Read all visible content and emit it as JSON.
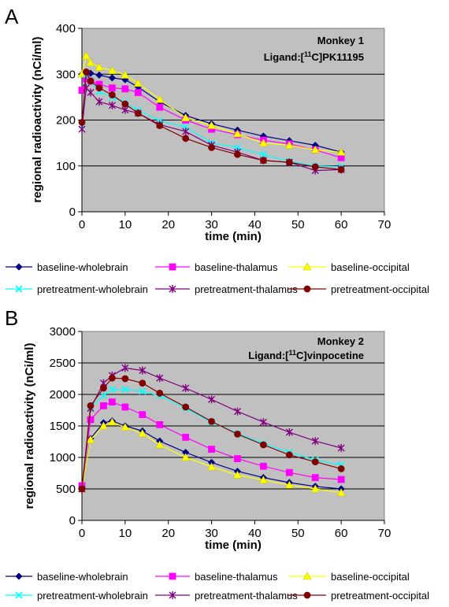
{
  "chart_data": [
    {
      "type": "line",
      "panel": "A",
      "annotation": {
        "line1": "Monkey 1",
        "line2_prefix": "Ligand:[",
        "line2_sup": "11",
        "line2_suffix": "C]PK11195"
      },
      "xlabel": "time (min)",
      "ylabel": "regional radioactivity (nCi/ml)",
      "xlim": [
        0,
        70
      ],
      "ylim": [
        0,
        400
      ],
      "xticks": [
        0,
        10,
        20,
        30,
        40,
        50,
        60,
        70
      ],
      "yticks": [
        0,
        100,
        200,
        300,
        400
      ],
      "grid": true,
      "legend_position": "bottom",
      "x": [
        0,
        1,
        2,
        4,
        7,
        10,
        13,
        18,
        24,
        30,
        36,
        42,
        48,
        54,
        60
      ],
      "series": [
        {
          "name": "baseline-wholebrain",
          "color": "#000080",
          "marker": "diamond",
          "values": [
            300,
            305,
            302,
            298,
            292,
            288,
            272,
            240,
            210,
            192,
            178,
            165,
            155,
            145,
            130
          ]
        },
        {
          "name": "baseline-thalamus",
          "color": "#FF00FF",
          "marker": "square",
          "values": [
            265,
            290,
            285,
            278,
            270,
            268,
            260,
            228,
            200,
            180,
            168,
            156,
            148,
            135,
            118
          ]
        },
        {
          "name": "baseline-occipital",
          "color": "#FFFF00",
          "marker": "triangle",
          "values": [
            300,
            340,
            325,
            315,
            308,
            298,
            280,
            245,
            205,
            188,
            170,
            150,
            145,
            135,
            130
          ]
        },
        {
          "name": "pretreatment-wholebrain",
          "color": "#00FFFF",
          "marker": "x",
          "values": [
            190,
            300,
            285,
            262,
            250,
            238,
            222,
            198,
            185,
            150,
            140,
            125,
            110,
            100,
            98
          ]
        },
        {
          "name": "pretreatment-thalamus",
          "color": "#800080",
          "marker": "star",
          "values": [
            180,
            270,
            260,
            240,
            232,
            222,
            215,
            190,
            175,
            145,
            130,
            112,
            108,
            90,
            92
          ]
        },
        {
          "name": "pretreatment-occipital",
          "color": "#800000",
          "marker": "circle",
          "values": [
            195,
            305,
            285,
            270,
            255,
            235,
            215,
            188,
            160,
            140,
            125,
            112,
            108,
            98,
            92
          ]
        }
      ]
    },
    {
      "type": "line",
      "panel": "B",
      "annotation": {
        "line1": "Monkey 2",
        "line2_prefix": "Ligand:[",
        "line2_sup": "11",
        "line2_suffix": "C]vinpocetine"
      },
      "xlabel": "time (min)",
      "ylabel": "regional radioactivity (nCi/ml)",
      "xlim": [
        0,
        70
      ],
      "ylim": [
        0,
        3000
      ],
      "xticks": [
        0,
        10,
        20,
        30,
        40,
        50,
        60,
        70
      ],
      "yticks": [
        0,
        500,
        1000,
        1500,
        2000,
        2500,
        3000
      ],
      "grid": true,
      "legend_position": "bottom",
      "x": [
        0,
        2,
        5,
        7,
        10,
        14,
        18,
        24,
        30,
        36,
        42,
        48,
        54,
        60
      ],
      "series": [
        {
          "name": "baseline-wholebrain",
          "color": "#000080",
          "marker": "diamond",
          "values": [
            500,
            1300,
            1550,
            1580,
            1500,
            1420,
            1260,
            1080,
            920,
            780,
            680,
            600,
            540,
            500
          ]
        },
        {
          "name": "baseline-thalamus",
          "color": "#FF00FF",
          "marker": "square",
          "values": [
            550,
            1600,
            1820,
            1880,
            1800,
            1680,
            1520,
            1320,
            1130,
            980,
            860,
            760,
            680,
            650
          ]
        },
        {
          "name": "baseline-occipital",
          "color": "#FFFF00",
          "marker": "triangle",
          "values": [
            500,
            1280,
            1500,
            1560,
            1480,
            1380,
            1200,
            1000,
            850,
            720,
            640,
            560,
            500,
            440
          ]
        },
        {
          "name": "pretreatment-wholebrain",
          "color": "#00FFFF",
          "marker": "x",
          "values": [
            500,
            1800,
            1980,
            2080,
            2080,
            2050,
            1980,
            1780,
            1560,
            1380,
            1220,
            1080,
            960,
            880
          ]
        },
        {
          "name": "pretreatment-thalamus",
          "color": "#800080",
          "marker": "star",
          "values": [
            500,
            1780,
            2180,
            2300,
            2420,
            2380,
            2260,
            2100,
            1920,
            1730,
            1560,
            1400,
            1260,
            1150
          ]
        },
        {
          "name": "pretreatment-occipital",
          "color": "#800000",
          "marker": "circle",
          "values": [
            500,
            1820,
            2100,
            2260,
            2250,
            2180,
            2020,
            1800,
            1570,
            1370,
            1200,
            1040,
            930,
            820
          ]
        }
      ]
    }
  ]
}
